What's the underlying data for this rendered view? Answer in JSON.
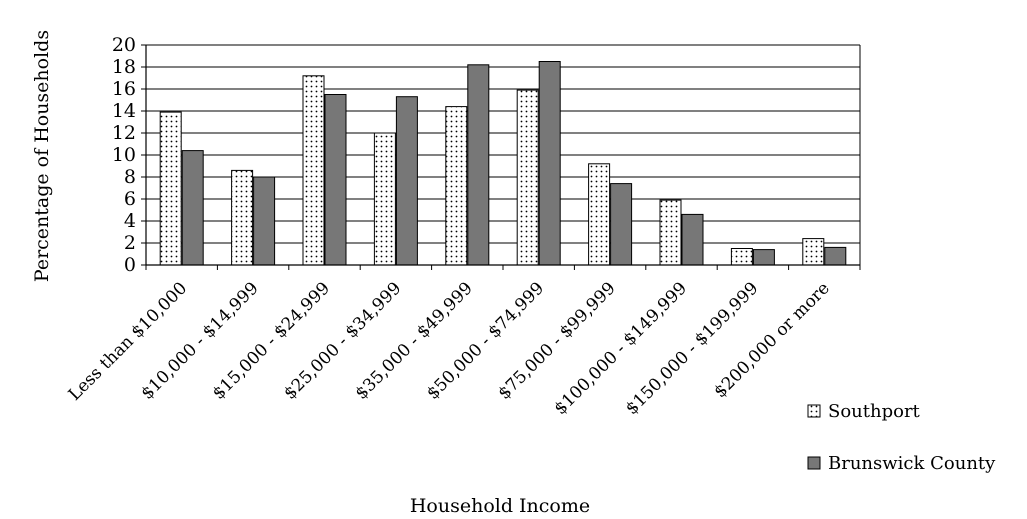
{
  "chart_data": {
    "type": "bar",
    "title": "",
    "xlabel": "Household Income",
    "ylabel": "Percentage of Households",
    "ylim": [
      0,
      20
    ],
    "yticks": [
      0,
      2,
      4,
      6,
      8,
      10,
      12,
      14,
      16,
      18,
      20
    ],
    "grid": true,
    "legend_position": "bottom-right",
    "categories": [
      "Less than $10,000",
      "$10,000 - $14,999",
      "$15,000 - $24,999",
      "$25,000 - $34,999",
      "$35,000 - $49,999",
      "$50,000 - $74,999",
      "$75,000 - $99,999",
      "$100,000 - $149,999",
      "$150,000 - $199,999",
      "$200,000 or more"
    ],
    "series": [
      {
        "name": "Southport",
        "pattern": "dotted",
        "color": "#ffffff",
        "values": [
          13.9,
          8.6,
          17.2,
          12.0,
          14.4,
          15.9,
          9.2,
          5.9,
          1.5,
          2.4
        ]
      },
      {
        "name": "Brunswick County",
        "pattern": "solid",
        "color": "#777777",
        "values": [
          10.4,
          8.0,
          15.5,
          15.3,
          18.2,
          18.5,
          7.4,
          4.6,
          1.4,
          1.6
        ]
      }
    ]
  }
}
